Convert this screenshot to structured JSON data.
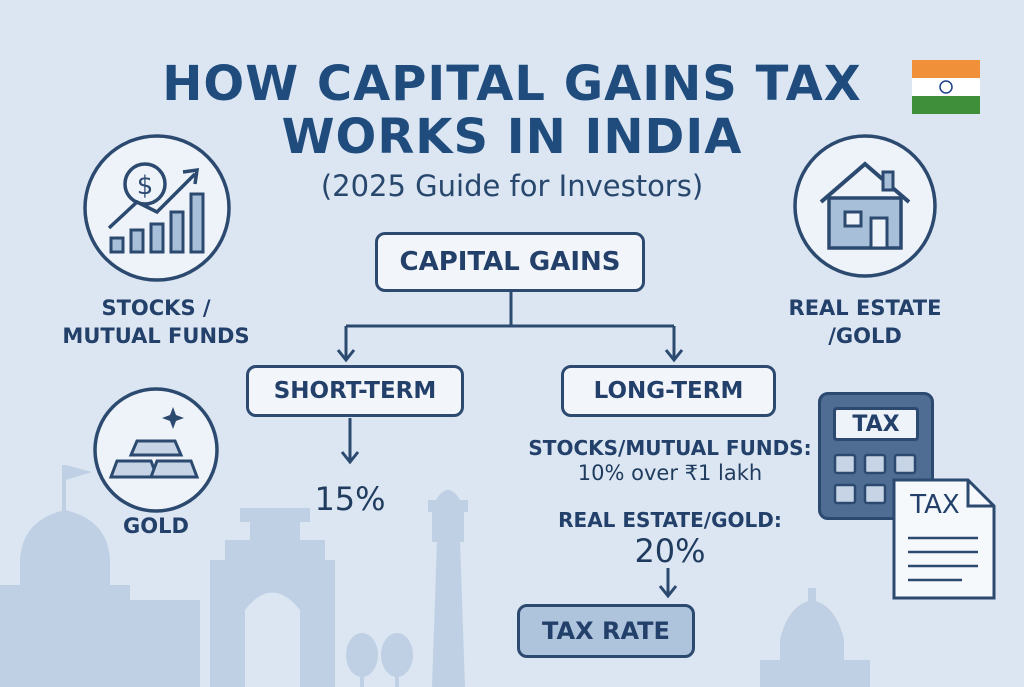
{
  "title": {
    "line1": "HOW CAPITAL GAINS TAX",
    "line2": "WORKS IN INDIA"
  },
  "subtitle": "(2025 Guide for Investors)",
  "flow": {
    "root": "CAPITAL GAINS",
    "short_term": {
      "label": "SHORT-TERM",
      "rate": "15%"
    },
    "long_term": {
      "label": "LONG-TERM",
      "stocks_label": "STOCKS/MUTUAL FUNDS:",
      "stocks_rate": "10% over ₹1 lakh",
      "realestate_label": "REAL ESTATE/GOLD:",
      "realestate_rate": "20%"
    },
    "result": "TAX RATE"
  },
  "assets": {
    "stocks": {
      "line1": "STOCKS /",
      "line2": "MUTUAL FUNDS"
    },
    "real_estate": {
      "line1": "REAL ESTATE",
      "line2": "/GOLD"
    },
    "gold": "GOLD"
  },
  "calculator": {
    "screen": "TAX"
  },
  "document": {
    "heading": "TAX"
  },
  "colors": {
    "background": "#dbe6f2",
    "navy": "#2c4a70",
    "flag_saffron": "#f0913a",
    "flag_green": "#3f8f3a",
    "silhouette": "#b9cce2"
  }
}
